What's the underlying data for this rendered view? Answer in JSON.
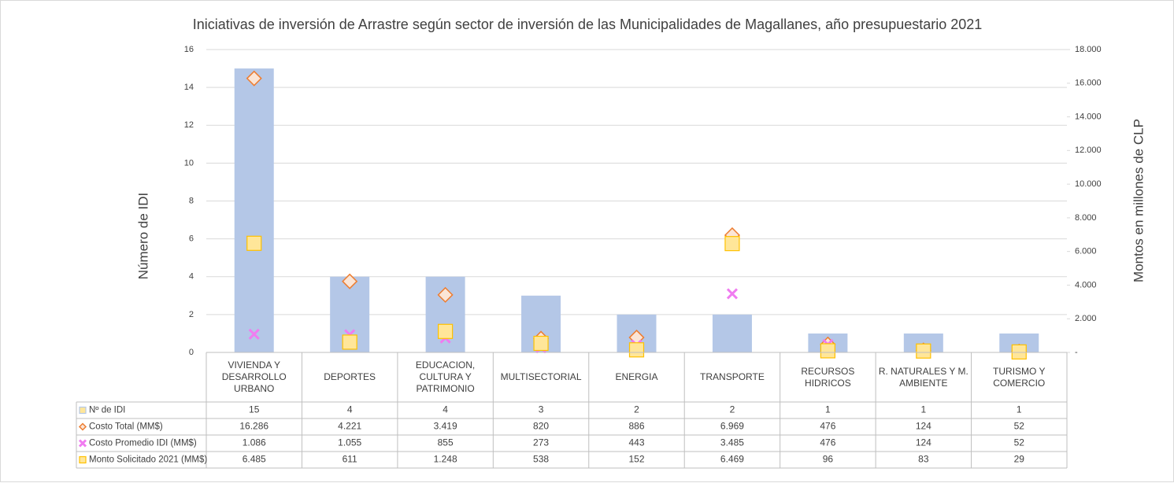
{
  "chart_data": {
    "type": "bar",
    "title": "Iniciativas de inversión de Arrastre según sector de inversión de las Municipalidades de Magallanes, año presupuestario 2021",
    "ylabel": "Número de IDI",
    "y2label": "Montos en millones de CLP",
    "categories": [
      "VIVIENDA Y DESARROLLO URBANO",
      "DEPORTES",
      "EDUCACION, CULTURA Y PATRIMONIO",
      "MULTISECTORIAL",
      "ENERGIA",
      "TRANSPORTE",
      "RECURSOS HIDRICOS",
      "R. NATURALES Y M. AMBIENTE",
      "TURISMO Y COMERCIO"
    ],
    "ylim": [
      0,
      16
    ],
    "yticks": [
      0,
      2,
      4,
      6,
      8,
      10,
      12,
      14,
      16
    ],
    "y2lim": [
      0,
      18000
    ],
    "y2ticks": [
      {
        "value": 0,
        "label": "-"
      },
      {
        "value": 2000,
        "label": "2.000"
      },
      {
        "value": 4000,
        "label": "4.000"
      },
      {
        "value": 6000,
        "label": "6.000"
      },
      {
        "value": 8000,
        "label": "8.000"
      },
      {
        "value": 10000,
        "label": "10.000"
      },
      {
        "value": 12000,
        "label": "12.000"
      },
      {
        "value": 14000,
        "label": "14.000"
      },
      {
        "value": 16000,
        "label": "16.000"
      },
      {
        "value": 18000,
        "label": "18.000"
      }
    ],
    "grid": true,
    "series": [
      {
        "name": "Nº de IDI",
        "kind": "bar",
        "marker": "square",
        "color": "#b4c7e7",
        "values": [
          15,
          4,
          4,
          3,
          2,
          2,
          1,
          1,
          1
        ]
      },
      {
        "name": "Costo Total (MM$)",
        "kind": "scatter",
        "marker": "diamond",
        "color": "#ed7d31",
        "axis": "y2",
        "values": [
          16286,
          4221,
          3419,
          820,
          886,
          6969,
          476,
          124,
          52
        ],
        "value_labels": [
          "16.286",
          "4.221",
          "3.419",
          "820",
          "886",
          "6.969",
          "476",
          "124",
          "52"
        ]
      },
      {
        "name": "Costo Promedio IDI (MM$)",
        "kind": "scatter",
        "marker": "x",
        "color": "#f07cf0",
        "axis": "y2",
        "values": [
          1086,
          1055,
          855,
          273,
          443,
          3485,
          476,
          124,
          52
        ],
        "value_labels": [
          "1.086",
          "1.055",
          "855",
          "273",
          "443",
          "3.485",
          "476",
          "124",
          "52"
        ]
      },
      {
        "name": "Monto Solicitado 2021 (MM$)",
        "kind": "scatter",
        "marker": "square",
        "color": "#ffc000",
        "axis": "y2",
        "values": [
          6485,
          611,
          1248,
          538,
          152,
          6469,
          96,
          83,
          29
        ],
        "value_labels": [
          "6.485",
          "611",
          "1.248",
          "538",
          "152",
          "6.469",
          "96",
          "83",
          "29"
        ]
      }
    ]
  }
}
